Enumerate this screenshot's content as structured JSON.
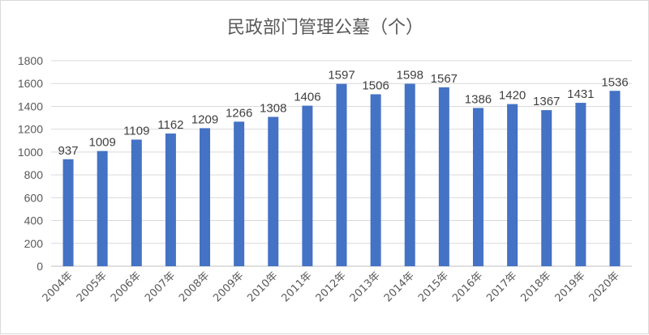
{
  "chart_data": {
    "type": "bar",
    "title": "民政部门管理公墓（个）",
    "categories": [
      "2004年",
      "2005年",
      "2006年",
      "2007年",
      "2008年",
      "2009年",
      "2010年",
      "2011年",
      "2012年",
      "2013年",
      "2014年",
      "2015年",
      "2016年",
      "2017年",
      "2018年",
      "2019年",
      "2020年"
    ],
    "values": [
      937,
      1009,
      1109,
      1162,
      1209,
      1266,
      1308,
      1406,
      1597,
      1506,
      1598,
      1567,
      1386,
      1420,
      1367,
      1431,
      1536
    ],
    "ylim": [
      0,
      1800
    ],
    "yticks": [
      0,
      200,
      400,
      600,
      800,
      1000,
      1200,
      1400,
      1600,
      1800
    ],
    "xlabel": "",
    "ylabel": "",
    "grid": true,
    "legend": "none",
    "bar_color": "#4472c4"
  }
}
